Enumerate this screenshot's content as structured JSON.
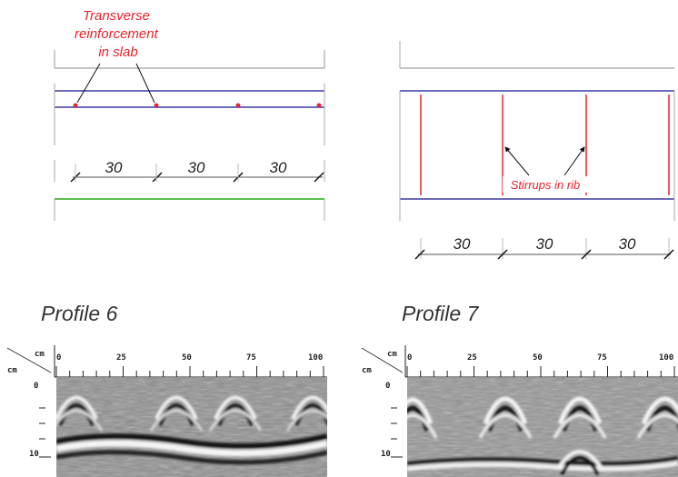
{
  "left_diagram": {
    "annotation": [
      "Transverse",
      "reinforcement",
      "in slab"
    ],
    "spacings": [
      "30",
      "30",
      "30"
    ]
  },
  "right_diagram": {
    "annotation": "Stirrups in rib",
    "spacings": [
      "30",
      "30",
      "30"
    ]
  },
  "profiles": [
    {
      "title": "Profile 6",
      "x_unit": "cm",
      "y_unit": "cm",
      "x_ticks": [
        "0",
        "25",
        "50",
        "75",
        "100"
      ],
      "y_ticks": [
        "0",
        "10"
      ]
    },
    {
      "title": "Profile 7",
      "x_unit": "cm",
      "y_unit": "cm",
      "x_ticks": [
        "0",
        "25",
        "50",
        "75",
        "100"
      ],
      "y_ticks": [
        "0",
        "10"
      ]
    }
  ],
  "colors": {
    "annotation": "#e8232d",
    "slab_line": "#3a3aa0",
    "bottom_line": "#5cbf4a"
  }
}
